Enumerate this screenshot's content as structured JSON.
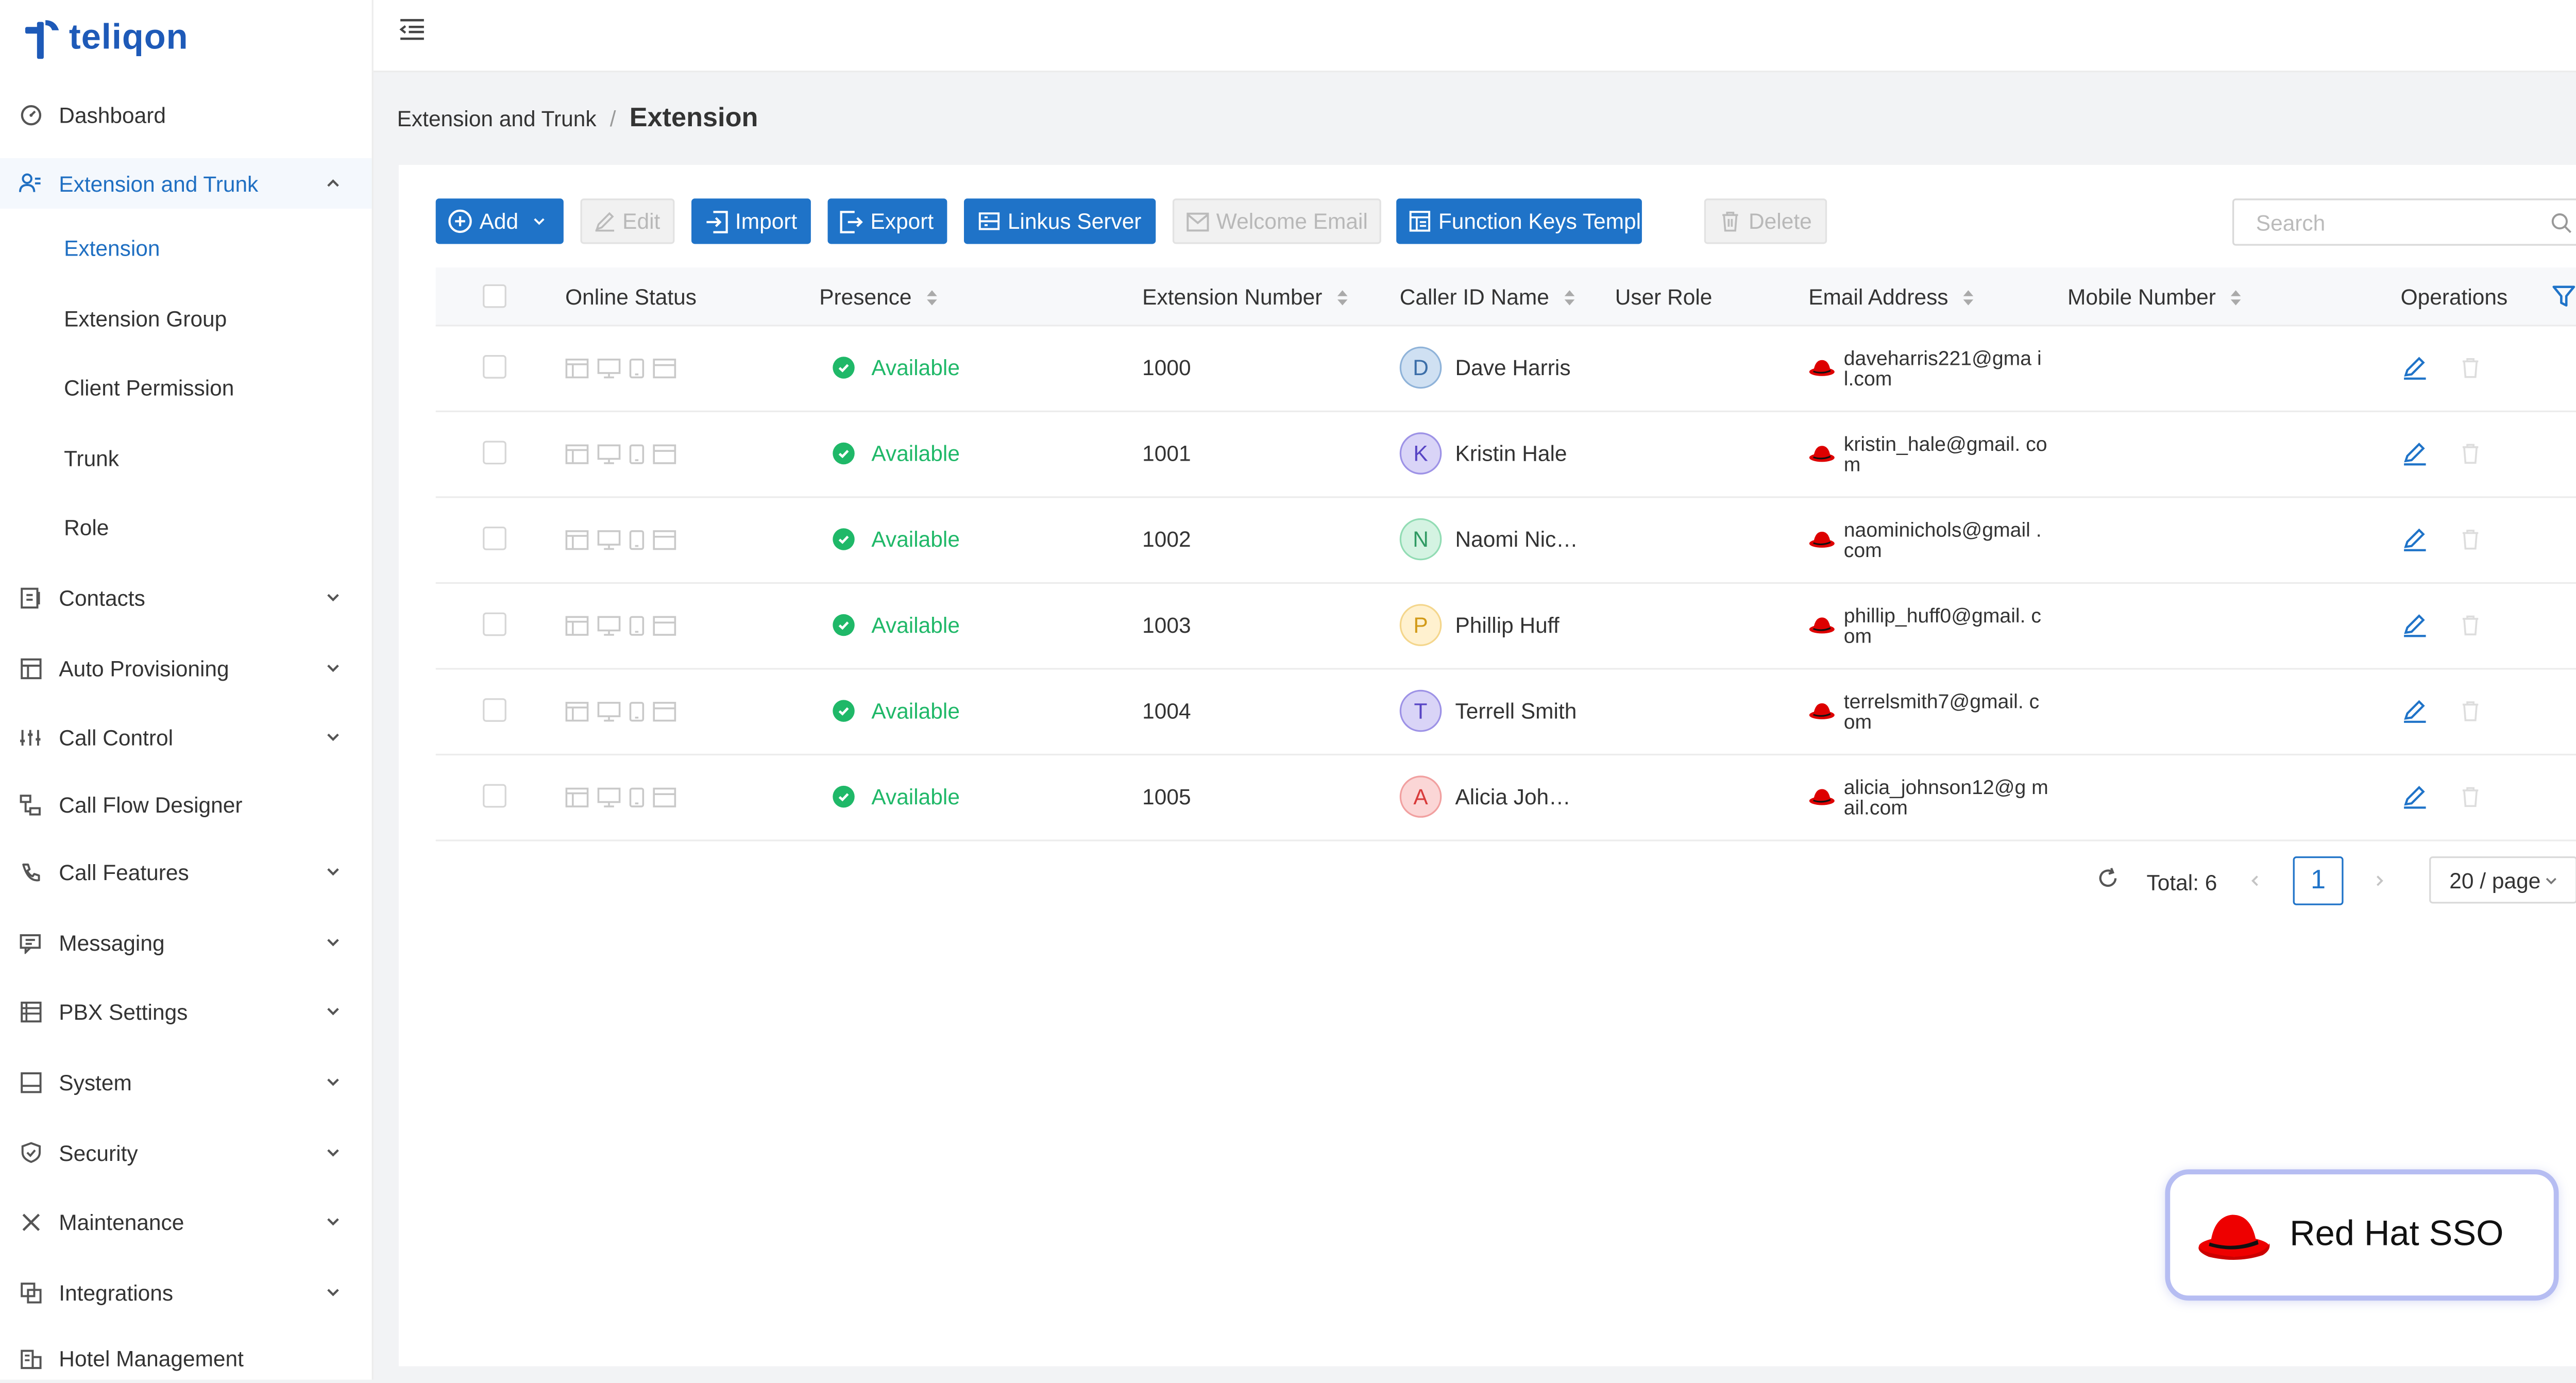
{
  "brand": {
    "name": "teliqon",
    "accent": "#1f73c8",
    "logo_color": "#1e5ab8"
  },
  "sidebar": {
    "items": [
      {
        "label": "Dashboard",
        "icon": "dashboard-icon",
        "expandable": false
      },
      {
        "label": "Extension and Trunk",
        "icon": "users-icon",
        "expandable": true,
        "expanded": true
      },
      {
        "label": "Contacts",
        "icon": "contacts-icon",
        "expandable": true
      },
      {
        "label": "Auto Provisioning",
        "icon": "provisioning-icon",
        "expandable": true
      },
      {
        "label": "Call Control",
        "icon": "sliders-icon",
        "expandable": true
      },
      {
        "label": "Call Flow Designer",
        "icon": "flow-icon",
        "expandable": false
      },
      {
        "label": "Call Features",
        "icon": "phone-icon",
        "expandable": true
      },
      {
        "label": "Messaging",
        "icon": "message-icon",
        "expandable": true
      },
      {
        "label": "PBX Settings",
        "icon": "settings-list-icon",
        "expandable": true
      },
      {
        "label": "System",
        "icon": "system-icon",
        "expandable": true
      },
      {
        "label": "Security",
        "icon": "shield-icon",
        "expandable": true
      },
      {
        "label": "Maintenance",
        "icon": "tools-icon",
        "expandable": true
      },
      {
        "label": "Integrations",
        "icon": "integrations-icon",
        "expandable": true
      },
      {
        "label": "Hotel Management",
        "icon": "hotel-icon",
        "expandable": false
      }
    ],
    "subitems": [
      {
        "label": "Extension",
        "active": true
      },
      {
        "label": "Extension Group"
      },
      {
        "label": "Client Permission"
      },
      {
        "label": "Trunk"
      },
      {
        "label": "Role"
      }
    ]
  },
  "breadcrumb": {
    "parent": "Extension and Trunk",
    "separator": "/",
    "current": "Extension"
  },
  "toolbar": {
    "add": "Add",
    "edit": "Edit",
    "import": "Import",
    "export": "Export",
    "linkus": "Linkus Server",
    "welcome": "Welcome Email",
    "function_keys": "Function Keys Template",
    "delete": "Delete"
  },
  "search": {
    "placeholder": "Search"
  },
  "table": {
    "headers": {
      "online_status": "Online Status",
      "presence": "Presence",
      "extension_number": "Extension Number",
      "caller_id_name": "Caller ID Name",
      "user_role": "User Role",
      "email": "Email Address",
      "mobile": "Mobile Number",
      "operations": "Operations"
    },
    "rows": [
      {
        "presence": "Available",
        "ext": "1000",
        "initial": "D",
        "name": "Dave Harris",
        "email": "daveharris221@gma il.com",
        "avatar_bg": "#cfe0f2",
        "avatar_fg": "#3b6ea8",
        "avatar_border": "#8fb3d9"
      },
      {
        "presence": "Available",
        "ext": "1001",
        "initial": "K",
        "name": "Kristin Hale",
        "email": "kristin_hale@gmail. com",
        "avatar_bg": "#d9d4f7",
        "avatar_fg": "#5744c4",
        "avatar_border": "#9d92e6"
      },
      {
        "presence": "Available",
        "ext": "1002",
        "initial": "N",
        "name": "Naomi Nic…",
        "email": "naominichols@gmail .com",
        "avatar_bg": "#d4f3e2",
        "avatar_fg": "#2f9a63",
        "avatar_border": "#92dcb4"
      },
      {
        "presence": "Available",
        "ext": "1003",
        "initial": "P",
        "name": "Phillip Huff",
        "email": "phillip_huff0@gmail. com",
        "avatar_bg": "#fff1cf",
        "avatar_fg": "#d29a17",
        "avatar_border": "#f4d68c"
      },
      {
        "presence": "Available",
        "ext": "1004",
        "initial": "T",
        "name": "Terrell Smith",
        "email": "terrelsmith7@gmail. com",
        "avatar_bg": "#d9d4f7",
        "avatar_fg": "#5744c4",
        "avatar_border": "#9d92e6"
      },
      {
        "presence": "Available",
        "ext": "1005",
        "initial": "A",
        "name": "Alicia Joh…",
        "email": "alicia_johnson12@g mail.com",
        "avatar_bg": "#fbd6d6",
        "avatar_fg": "#d83a3a",
        "avatar_border": "#f1a0a0"
      }
    ]
  },
  "pagination": {
    "total": "Total: 6",
    "current_page": "1",
    "page_size": "20 / page"
  },
  "sso_badge": {
    "label": "Red Hat SSO",
    "hat_color": "#ee0000"
  }
}
